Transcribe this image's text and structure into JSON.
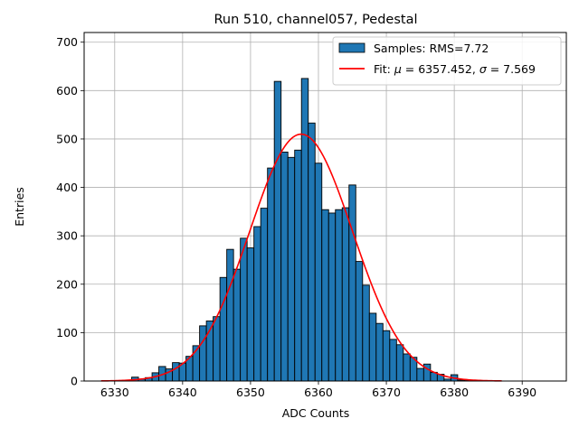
{
  "chart_data": {
    "type": "bar",
    "title": "Run 510, channel057, Pedestal",
    "xlabel": "ADC Counts",
    "ylabel": "Entries",
    "xlim": [
      6325.5,
      6396.5
    ],
    "ylim": [
      0,
      720
    ],
    "xticks": [
      6330,
      6340,
      6350,
      6360,
      6370,
      6380,
      6390
    ],
    "yticks": [
      0,
      100,
      200,
      300,
      400,
      500,
      600,
      700
    ],
    "grid": true,
    "legend_position": "top-right",
    "bins": [
      6329,
      6330,
      6331,
      6332,
      6333,
      6334,
      6335,
      6336,
      6337,
      6338,
      6339,
      6340,
      6341,
      6342,
      6343,
      6344,
      6345,
      6346,
      6347,
      6348,
      6349,
      6350,
      6351,
      6352,
      6353,
      6354,
      6355,
      6356,
      6357,
      6358,
      6359,
      6360,
      6361,
      6362,
      6363,
      6364,
      6365,
      6366,
      6367,
      6368,
      6369,
      6370,
      6371,
      6372,
      6373,
      6374,
      6375,
      6376,
      6377,
      6378,
      6379,
      6380,
      6381,
      6382,
      6383
    ],
    "values": [
      0,
      0,
      1,
      2,
      8,
      4,
      7,
      17,
      30,
      25,
      38,
      37,
      51,
      73,
      114,
      124,
      133,
      214,
      272,
      231,
      295,
      275,
      319,
      357,
      440,
      619,
      473,
      462,
      477,
      625,
      533,
      450,
      354,
      347,
      354,
      358,
      405,
      247,
      198,
      140,
      119,
      104,
      86,
      75,
      56,
      49,
      26,
      35,
      18,
      14,
      4,
      13,
      2,
      2,
      0
    ],
    "bar_color": "#1f77b4",
    "series": [
      {
        "name": "Samples: RMS=7.72",
        "type": "histogram",
        "color": "#1f77b4"
      },
      {
        "name": "Fit: μ = 6357.452, σ = 7.569",
        "type": "gaussian-fit",
        "color": "#ff0000",
        "mu": 6357.452,
        "sigma": 7.569,
        "amplitude": 510,
        "x_range": [
          6328,
          6387
        ]
      }
    ]
  },
  "legend": {
    "entries": [
      {
        "label": "Samples: RMS=7.72",
        "icon": "filled-rectangle",
        "color": "#1f77b4"
      },
      {
        "label_prefix": "Fit: ",
        "mu_symbol": "μ",
        "mu_text": " = 6357.452, ",
        "sigma_symbol": "σ",
        "sigma_text": " = 7.569",
        "icon": "line-segment",
        "color": "#ff0000"
      }
    ]
  }
}
